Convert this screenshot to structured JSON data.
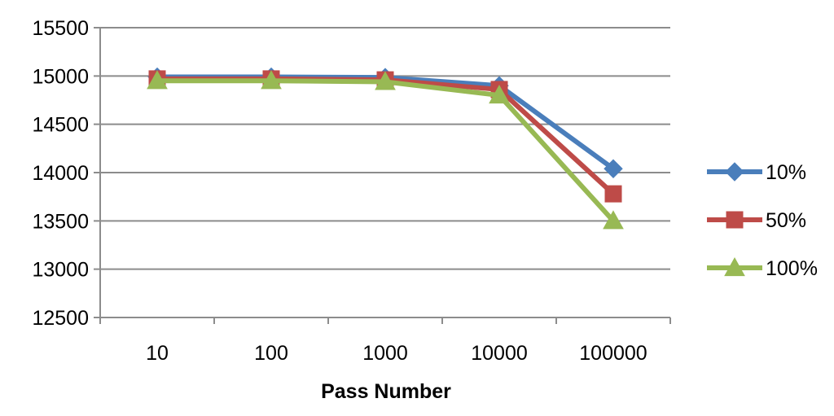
{
  "chart_data": {
    "type": "line",
    "title": "",
    "xlabel": "Pass Number",
    "ylabel": "",
    "categories": [
      "10",
      "100",
      "1000",
      "10000",
      "100000"
    ],
    "ylim": [
      12500,
      15500
    ],
    "yticks": [
      "15500",
      "15000",
      "14500",
      "14000",
      "13500",
      "13000",
      "12500"
    ],
    "grid": true,
    "legend_position": "right",
    "series": [
      {
        "name": "10%",
        "color": "#4a7ebb",
        "marker": "diamond",
        "values": [
          14990,
          14990,
          14985,
          14900,
          14040
        ]
      },
      {
        "name": "50%",
        "color": "#be4b48",
        "marker": "square",
        "values": [
          14970,
          14970,
          14960,
          14860,
          13780
        ]
      },
      {
        "name": "100%",
        "color": "#98b954",
        "marker": "triangle",
        "values": [
          14950,
          14950,
          14940,
          14800,
          13500
        ]
      }
    ]
  }
}
